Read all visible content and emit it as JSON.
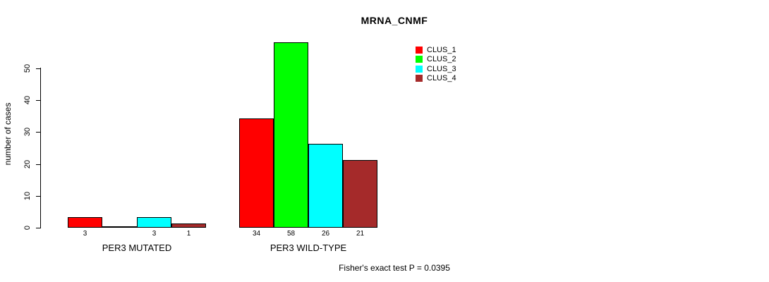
{
  "chart": {
    "title": "MRNA_CNMF",
    "ylabel": "number of cases",
    "footnote": "Fisher's exact test P = 0.0395"
  },
  "chart_data": {
    "type": "bar",
    "title": "MRNA_CNMF",
    "xlabel": "",
    "ylabel": "number of cases",
    "categories": [
      "PER3 MUTATED",
      "PER3 WILD-TYPE"
    ],
    "series": [
      {
        "name": "CLUS_1",
        "color": "#FF0000",
        "values": [
          3,
          34
        ]
      },
      {
        "name": "CLUS_2",
        "color": "#00FF00",
        "values": [
          0,
          58
        ]
      },
      {
        "name": "CLUS_3",
        "color": "#00FFFF",
        "values": [
          3,
          26
        ]
      },
      {
        "name": "CLUS_4",
        "color": "#A52A2A",
        "values": [
          1,
          21
        ]
      }
    ],
    "bar_labels": [
      [
        "3",
        "",
        "3",
        "1"
      ],
      [
        "34",
        "58",
        "26",
        "21"
      ]
    ],
    "yticks": [
      0,
      10,
      20,
      30,
      40,
      50
    ],
    "ylim": [
      0,
      58
    ],
    "grid": false,
    "legend_position": "top-right",
    "annotation": "Fisher's exact test P = 0.0395",
    "colors": {
      "axis": "#000000",
      "background": "#FFFFFF",
      "bar_border": "#000000"
    }
  }
}
